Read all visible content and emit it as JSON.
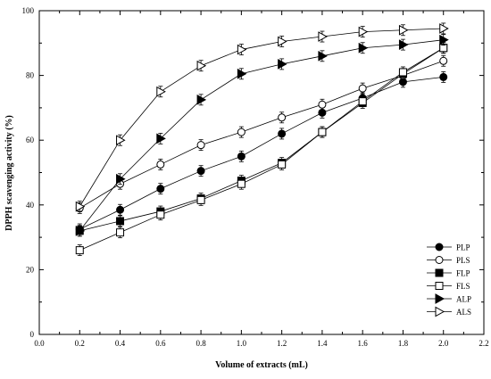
{
  "chart_data": {
    "type": "line",
    "title": "",
    "xlabel": "Volume of extracts (mL)",
    "ylabel": "DPPH  scavenging activity (%)",
    "xlim": [
      0.0,
      2.2
    ],
    "ylim": [
      0,
      100
    ],
    "xticks": [
      "0.0",
      "0.2",
      "0.4",
      "0.6",
      "0.8",
      "1.0",
      "1.2",
      "1.4",
      "1.6",
      "1.8",
      "2.0",
      "2.2"
    ],
    "yticks": [
      "0",
      "20",
      "40",
      "60",
      "80",
      "100"
    ],
    "x": [
      0.2,
      0.4,
      0.6,
      0.8,
      1.0,
      1.2,
      1.4,
      1.6,
      1.8,
      2.0
    ],
    "grid": false,
    "legend_position": "bottom-right",
    "series": [
      {
        "name": "PLP",
        "marker": "circle-filled",
        "values": [
          32.5,
          38.5,
          45.0,
          50.5,
          55.0,
          62.0,
          68.5,
          73.0,
          78.0,
          79.5
        ]
      },
      {
        "name": "PLS",
        "marker": "circle-open",
        "values": [
          39.0,
          46.5,
          52.5,
          58.5,
          62.5,
          67.0,
          71.0,
          76.0,
          80.0,
          84.5
        ]
      },
      {
        "name": "FLP",
        "marker": "square-filled",
        "values": [
          32.0,
          35.0,
          38.0,
          42.0,
          47.5,
          53.0,
          62.5,
          71.5,
          80.5,
          88.5
        ]
      },
      {
        "name": "FLS",
        "marker": "square-open",
        "values": [
          26.0,
          31.5,
          37.0,
          41.5,
          46.5,
          52.5,
          62.5,
          72.0,
          81.0,
          88.5
        ]
      },
      {
        "name": "ALP",
        "marker": "triangle-filled",
        "values": [
          32.0,
          48.0,
          60.5,
          72.5,
          80.5,
          83.5,
          86.0,
          88.5,
          89.5,
          91.0
        ]
      },
      {
        "name": "ALS",
        "marker": "triangle-open",
        "values": [
          39.5,
          60.0,
          75.0,
          83.0,
          88.0,
          90.5,
          92.0,
          93.5,
          94.0,
          94.5
        ]
      }
    ]
  }
}
